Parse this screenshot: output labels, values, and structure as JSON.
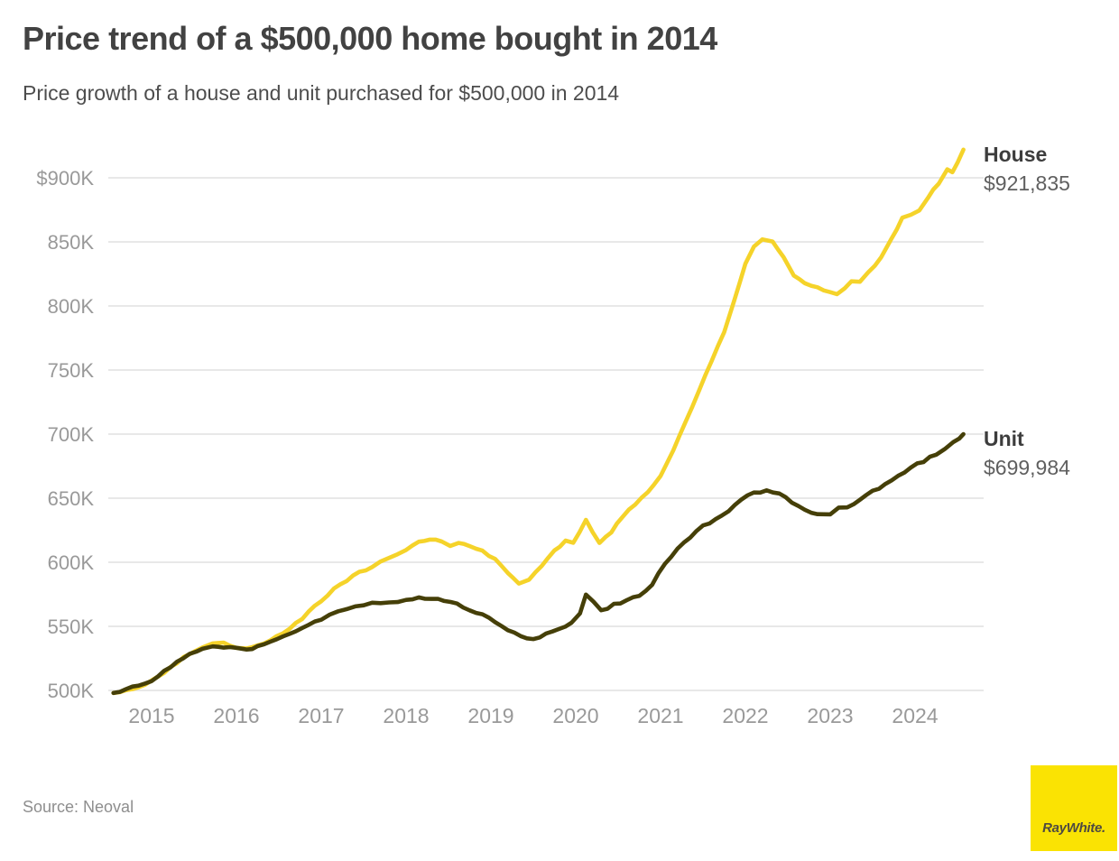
{
  "page": {
    "title": "Price trend of a $500,000 home bought in 2014",
    "subtitle": "Price growth of a house and unit purchased for $500,000 in 2014",
    "source": "Source: Neoval",
    "logo_text": "RayWhite."
  },
  "colors": {
    "house_line": "#F5D32A",
    "unit_line": "#453F08",
    "gridline": "#e8e8e8",
    "axis_text": "#999999",
    "logo_bg": "#FAE303",
    "logo_text": "#4E4A41"
  },
  "annotations": {
    "house": {
      "name": "House",
      "value": "$921,835"
    },
    "unit": {
      "name": "Unit",
      "value": "$699,984"
    }
  },
  "chart_data": {
    "type": "line",
    "title": "Price trend of a $500,000 home bought in 2014",
    "subtitle": "Price growth of a house and unit purchased for $500,000 in 2014",
    "y_unit": "thousand AUD",
    "x_range": [
      2014.5,
      2024.8
    ],
    "y_range": [
      490,
      930
    ],
    "grid": "horizontal",
    "legend_position": "right-end-labels",
    "x_ticks": [
      2015,
      2016,
      2017,
      2018,
      2019,
      2020,
      2021,
      2022,
      2023,
      2024
    ],
    "y_ticks": [
      {
        "v": 900,
        "label": "$900K"
      },
      {
        "v": 850,
        "label": "850K"
      },
      {
        "v": 800,
        "label": "800K"
      },
      {
        "v": 750,
        "label": "750K"
      },
      {
        "v": 700,
        "label": "700K"
      },
      {
        "v": 650,
        "label": "650K"
      },
      {
        "v": 600,
        "label": "600K"
      },
      {
        "v": 550,
        "label": "550K"
      },
      {
        "v": 500,
        "label": "500K"
      }
    ],
    "series": [
      {
        "name": "House",
        "end_value": 921.835,
        "color": "#F5D32A",
        "points": [
          [
            2014.55,
            498
          ],
          [
            2014.7,
            500
          ],
          [
            2014.85,
            503
          ],
          [
            2015.0,
            507
          ],
          [
            2015.15,
            514
          ],
          [
            2015.3,
            522
          ],
          [
            2015.45,
            529
          ],
          [
            2015.6,
            534
          ],
          [
            2015.72,
            537
          ],
          [
            2015.85,
            537
          ],
          [
            2016.0,
            534
          ],
          [
            2016.12,
            533
          ],
          [
            2016.25,
            535
          ],
          [
            2016.4,
            539
          ],
          [
            2016.55,
            545
          ],
          [
            2016.7,
            552
          ],
          [
            2016.85,
            561
          ],
          [
            2017.0,
            570
          ],
          [
            2017.15,
            579
          ],
          [
            2017.3,
            586
          ],
          [
            2017.45,
            592
          ],
          [
            2017.6,
            597
          ],
          [
            2017.8,
            603
          ],
          [
            2018.0,
            610
          ],
          [
            2018.15,
            616
          ],
          [
            2018.28,
            618
          ],
          [
            2018.42,
            616
          ],
          [
            2018.52,
            612
          ],
          [
            2018.62,
            615
          ],
          [
            2018.75,
            613
          ],
          [
            2018.9,
            609
          ],
          [
            2019.05,
            602
          ],
          [
            2019.2,
            592
          ],
          [
            2019.33,
            584
          ],
          [
            2019.45,
            586
          ],
          [
            2019.6,
            597
          ],
          [
            2019.75,
            609
          ],
          [
            2019.88,
            617
          ],
          [
            2019.97,
            615
          ],
          [
            2020.12,
            633
          ],
          [
            2020.28,
            615
          ],
          [
            2020.42,
            624
          ],
          [
            2020.55,
            636
          ],
          [
            2020.7,
            645
          ],
          [
            2020.85,
            655
          ],
          [
            2021.0,
            668
          ],
          [
            2021.15,
            688
          ],
          [
            2021.3,
            710
          ],
          [
            2021.45,
            733
          ],
          [
            2021.6,
            757
          ],
          [
            2021.75,
            780
          ],
          [
            2021.87,
            805
          ],
          [
            2022.0,
            833
          ],
          [
            2022.1,
            847
          ],
          [
            2022.2,
            852
          ],
          [
            2022.32,
            851
          ],
          [
            2022.45,
            838
          ],
          [
            2022.57,
            824
          ],
          [
            2022.7,
            818
          ],
          [
            2022.85,
            814
          ],
          [
            2023.0,
            811
          ],
          [
            2023.08,
            810
          ],
          [
            2023.17,
            814
          ],
          [
            2023.25,
            820
          ],
          [
            2023.35,
            819
          ],
          [
            2023.45,
            826
          ],
          [
            2023.6,
            838
          ],
          [
            2023.72,
            852
          ],
          [
            2023.85,
            869
          ],
          [
            2023.95,
            871
          ],
          [
            2024.05,
            875
          ],
          [
            2024.15,
            884
          ],
          [
            2024.28,
            896
          ],
          [
            2024.38,
            906
          ],
          [
            2024.44,
            904
          ],
          [
            2024.5,
            912
          ],
          [
            2024.57,
            922
          ]
        ]
      },
      {
        "name": "Unit",
        "end_value": 699.984,
        "color": "#453F08",
        "points": [
          [
            2014.55,
            498
          ],
          [
            2014.7,
            501
          ],
          [
            2014.85,
            504
          ],
          [
            2015.0,
            508
          ],
          [
            2015.15,
            515
          ],
          [
            2015.3,
            522
          ],
          [
            2015.45,
            528
          ],
          [
            2015.6,
            532
          ],
          [
            2015.72,
            535
          ],
          [
            2015.85,
            534
          ],
          [
            2016.0,
            533
          ],
          [
            2016.12,
            532
          ],
          [
            2016.25,
            534
          ],
          [
            2016.4,
            538
          ],
          [
            2016.55,
            542
          ],
          [
            2016.7,
            546
          ],
          [
            2016.85,
            551
          ],
          [
            2017.0,
            556
          ],
          [
            2017.2,
            561
          ],
          [
            2017.4,
            565
          ],
          [
            2017.6,
            568
          ],
          [
            2017.8,
            569
          ],
          [
            2018.0,
            570
          ],
          [
            2018.15,
            572
          ],
          [
            2018.3,
            572
          ],
          [
            2018.45,
            570
          ],
          [
            2018.6,
            567
          ],
          [
            2018.75,
            563
          ],
          [
            2018.9,
            559
          ],
          [
            2019.05,
            553
          ],
          [
            2019.2,
            547
          ],
          [
            2019.35,
            542
          ],
          [
            2019.5,
            540
          ],
          [
            2019.65,
            544
          ],
          [
            2019.8,
            548
          ],
          [
            2019.95,
            553
          ],
          [
            2020.05,
            560
          ],
          [
            2020.12,
            575
          ],
          [
            2020.3,
            562
          ],
          [
            2020.45,
            567
          ],
          [
            2020.6,
            570
          ],
          [
            2020.75,
            574
          ],
          [
            2020.9,
            583
          ],
          [
            2021.05,
            598
          ],
          [
            2021.2,
            610
          ],
          [
            2021.35,
            620
          ],
          [
            2021.5,
            628
          ],
          [
            2021.65,
            634
          ],
          [
            2021.8,
            640
          ],
          [
            2021.95,
            649
          ],
          [
            2022.1,
            654
          ],
          [
            2022.25,
            656
          ],
          [
            2022.4,
            654
          ],
          [
            2022.55,
            646
          ],
          [
            2022.7,
            641
          ],
          [
            2022.85,
            638
          ],
          [
            2023.0,
            638
          ],
          [
            2023.1,
            643
          ],
          [
            2023.2,
            643
          ],
          [
            2023.35,
            649
          ],
          [
            2023.5,
            655
          ],
          [
            2023.65,
            661
          ],
          [
            2023.8,
            667
          ],
          [
            2023.95,
            674
          ],
          [
            2024.1,
            679
          ],
          [
            2024.25,
            684
          ],
          [
            2024.35,
            689
          ],
          [
            2024.45,
            694
          ],
          [
            2024.52,
            696
          ],
          [
            2024.57,
            700
          ]
        ]
      }
    ]
  }
}
